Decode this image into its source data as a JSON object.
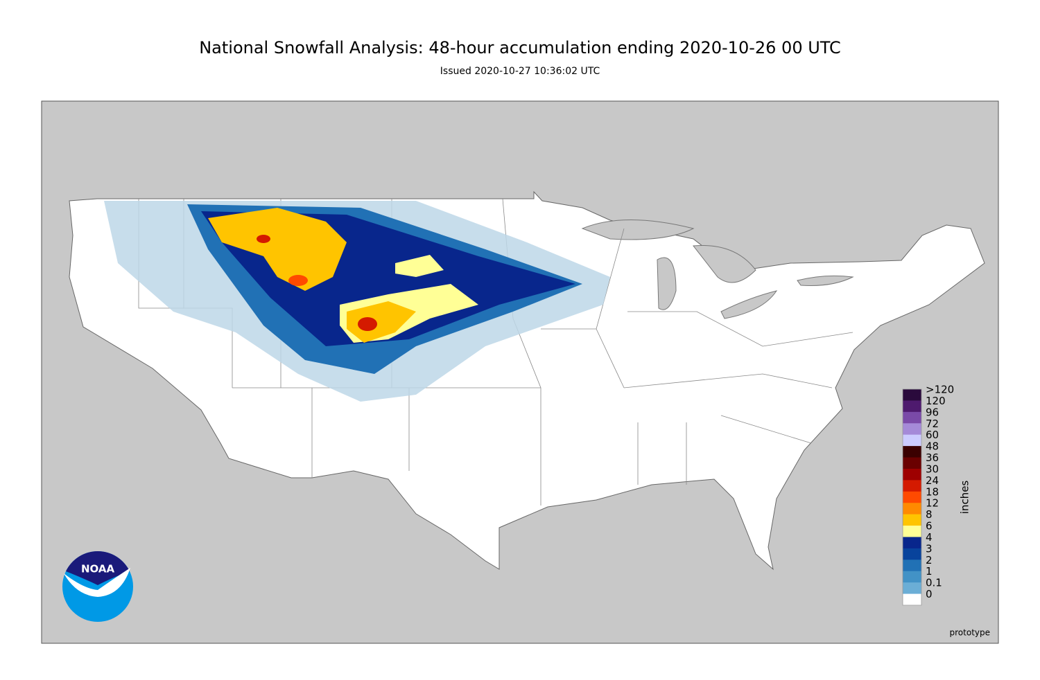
{
  "header": {
    "title": "National Snowfall Analysis: 48-hour accumulation ending 2020-10-26 00 UTC",
    "subtitle": "Issued 2020-10-27 10:36:02 UTC"
  },
  "legend": {
    "unit": "inches",
    "bins": [
      {
        "label": ">120",
        "color": "#2a0a3c"
      },
      {
        "label": "120",
        "color": "#4e1a6e"
      },
      {
        "label": "96",
        "color": "#7a4aa8"
      },
      {
        "label": "72",
        "color": "#a58ad8"
      },
      {
        "label": "60",
        "color": "#ccccff"
      },
      {
        "label": "48",
        "color": "#3a0000"
      },
      {
        "label": "36",
        "color": "#6a0000"
      },
      {
        "label": "30",
        "color": "#9e0000"
      },
      {
        "label": "24",
        "color": "#d41a00"
      },
      {
        "label": "18",
        "color": "#ff4a00"
      },
      {
        "label": "12",
        "color": "#ff8a00"
      },
      {
        "label": "8",
        "color": "#ffc400"
      },
      {
        "label": "6",
        "color": "#ffff96"
      },
      {
        "label": "4",
        "color": "#08268c"
      },
      {
        "label": "3",
        "color": "#08439c"
      },
      {
        "label": "2",
        "color": "#2171b5"
      },
      {
        "label": "1",
        "color": "#4292c6"
      },
      {
        "label": "0.1",
        "color": "#6baed6"
      },
      {
        "label": "0",
        "color": "#bdd7e7"
      }
    ],
    "base_color": "#e4eef8",
    "zero_color": "#ffffff"
  },
  "logo": {
    "text": "NOAA"
  },
  "footer": {
    "note": "prototype"
  }
}
